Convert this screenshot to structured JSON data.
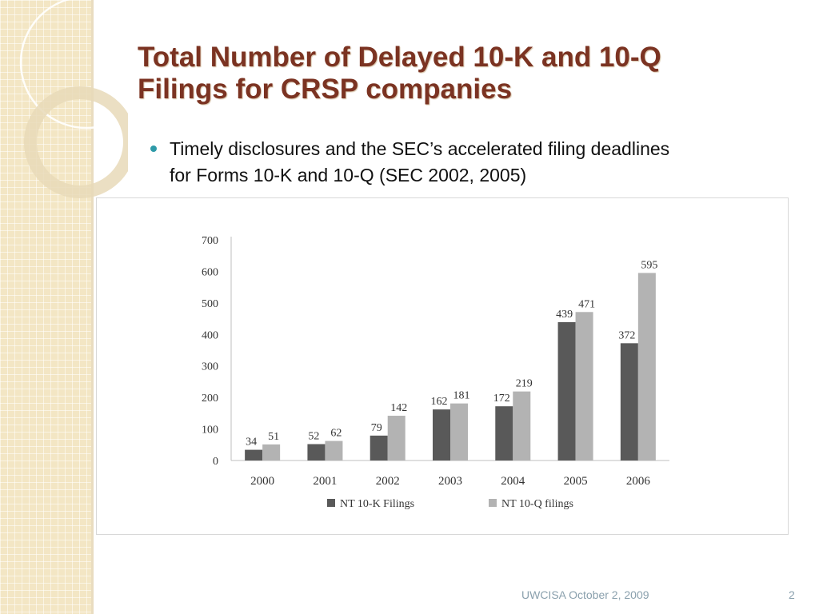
{
  "slide": {
    "title_line1": "Total Number of Delayed 10-K and 10-Q",
    "title_line2": "Filings for CRSP companies",
    "bullet_line1": "Timely disclosures and the SEC’s accelerated filing deadlines",
    "bullet_line2": "for Forms 10-K and 10-Q (SEC 2002, 2005)",
    "footer": "UWCISA October 2, 2009",
    "page_number": "2"
  },
  "colors": {
    "title": "#7b3322",
    "bullet": "#2e9aa8",
    "series_nt10k": "#595959",
    "series_nt10q": "#b3b3b3"
  },
  "chart_data": {
    "type": "bar",
    "categories": [
      "2000",
      "2001",
      "2002",
      "2003",
      "2004",
      "2005",
      "2006"
    ],
    "series": [
      {
        "name": "NT 10-K Filings",
        "values": [
          34,
          52,
          79,
          162,
          172,
          439,
          372
        ]
      },
      {
        "name": "NT 10-Q filings",
        "values": [
          51,
          62,
          142,
          181,
          219,
          471,
          595
        ]
      }
    ],
    "yticks": [
      0,
      100,
      200,
      300,
      400,
      500,
      600,
      700
    ],
    "ylim": [
      0,
      700
    ],
    "grid": false,
    "legend": "bottom",
    "data_labels": true
  }
}
